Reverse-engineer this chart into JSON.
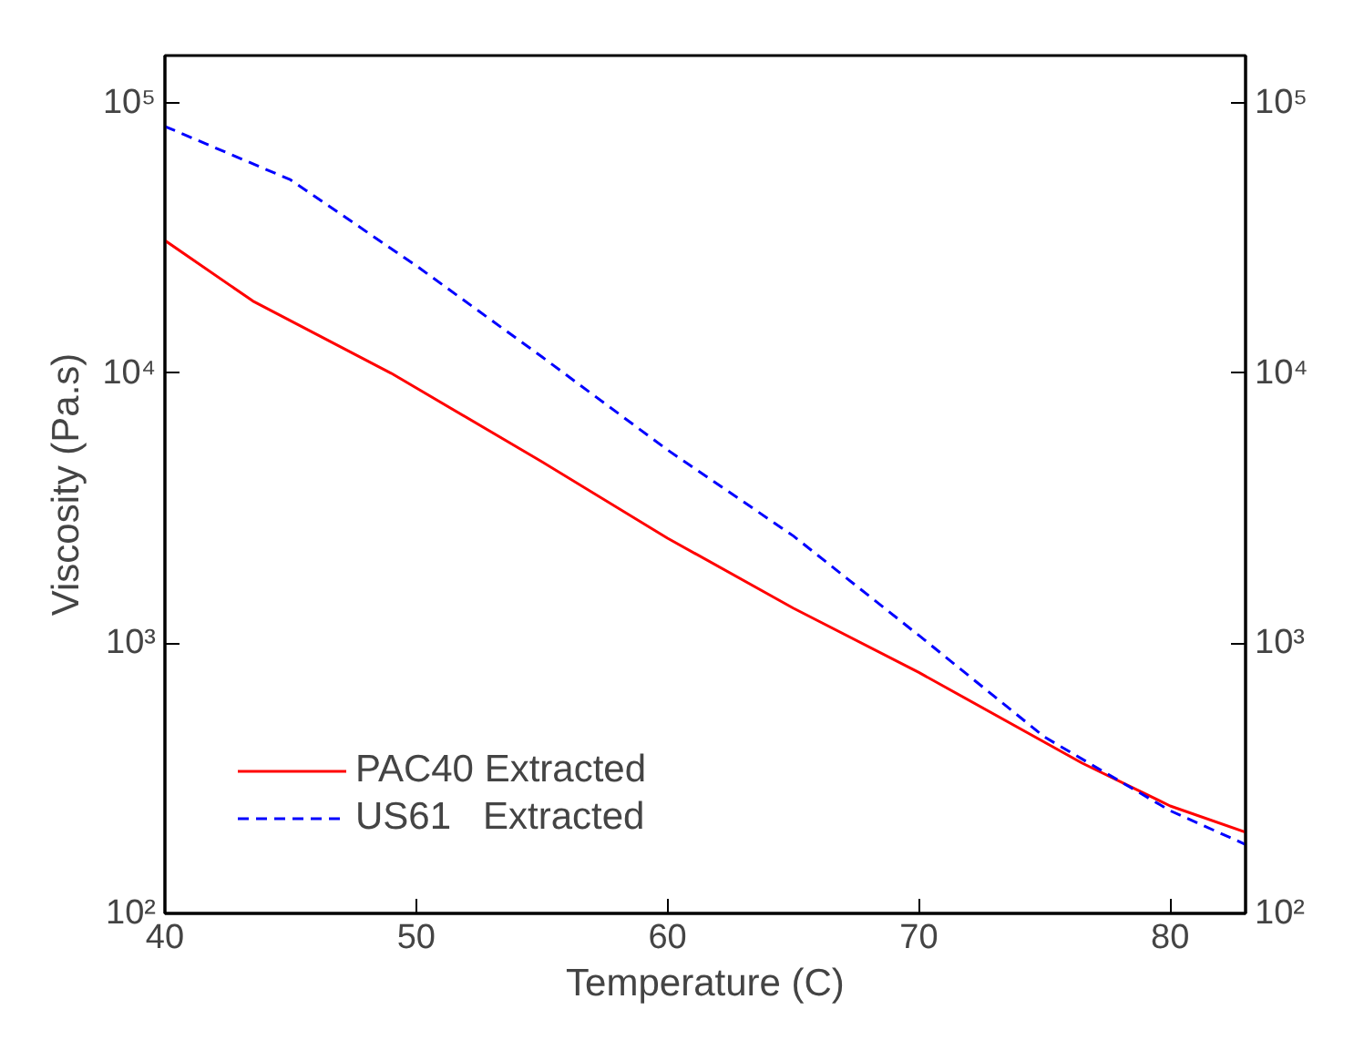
{
  "chart_data": {
    "type": "line",
    "xlabel": "Temperature (C)",
    "ylabel": "Viscosity (Pa.s)",
    "log": "y",
    "xlim": [
      40,
      83
    ],
    "xticks": [
      40,
      50,
      60,
      70,
      80
    ],
    "ylim": [
      100,
      150000
    ],
    "yticks": [
      {
        "value": 100,
        "label": "10²"
      },
      {
        "value": 1000,
        "label": "10³"
      },
      {
        "value": 10000,
        "label": "10⁴"
      },
      {
        "value": 100000,
        "label": "10⁵"
      }
    ],
    "grid": false,
    "legend": "bottom left",
    "marker": "none",
    "series": [
      {
        "name": "PAC40 Extracted",
        "color": "#ff0000",
        "line_style": "solid",
        "x": [
          40,
          43.5,
          49,
          55,
          60,
          65,
          70,
          76.5,
          80,
          83
        ],
        "values": [
          31000,
          18500,
          10000,
          4700,
          2450,
          1350,
          780,
          360,
          250,
          200
        ]
      },
      {
        "name": "US61   Extracted",
        "color": "#0000ff",
        "line_style": "dashed",
        "x": [
          40,
          45,
          50,
          55,
          60,
          65,
          70,
          75,
          80,
          83
        ],
        "values": [
          82000,
          52000,
          25000,
          11500,
          5200,
          2500,
          1070,
          450,
          240,
          180
        ]
      }
    ]
  }
}
